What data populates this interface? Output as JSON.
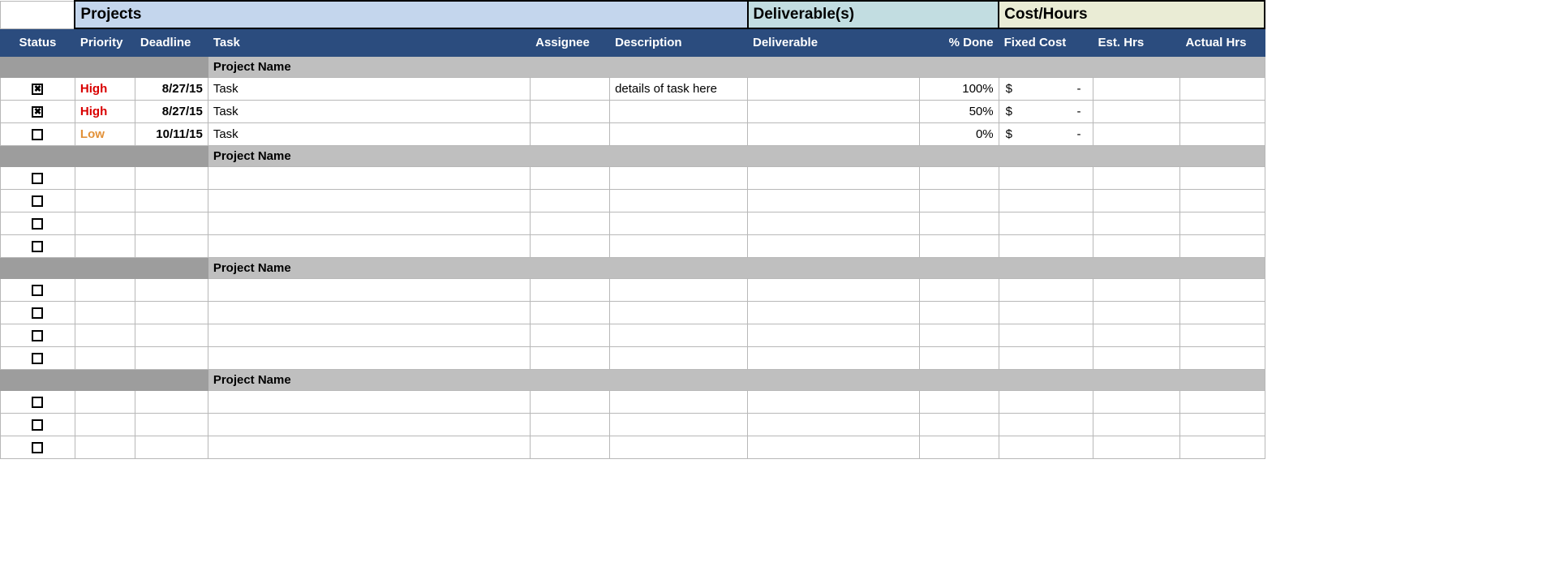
{
  "colors": {
    "headerBlue": "#2b4c7e",
    "projectsBanner": "#c4d6ed",
    "deliverableBanner": "#c2dde1",
    "costBanner": "#eaecd5",
    "groupHeader": "#bfbfbf",
    "groupHeaderDark": "#9d9d9d",
    "priorityHigh": "#d90000",
    "priorityLow": "#e29138",
    "cellBorder": "#b8b8b8"
  },
  "banners": {
    "projects": "Projects",
    "deliverables": "Deliverable(s)",
    "cost": "Cost/Hours"
  },
  "columns": {
    "status": "Status",
    "priority": "Priority",
    "deadline": "Deadline",
    "task": "Task",
    "assignee": "Assignee",
    "description": "Description",
    "deliverable": "Deliverable",
    "pctDone": "% Done",
    "fixedCost": "Fixed Cost",
    "estHrs": "Est. Hrs",
    "actualHrs": "Actual Hrs"
  },
  "columnWidths": {
    "status": 92,
    "priority": 74,
    "deadline": 90,
    "task": 398,
    "assignee": 98,
    "description": 170,
    "deliverable": 212,
    "pctDone": 98,
    "fixedCost": 116,
    "estHrs": 108,
    "actualHrs": 104
  },
  "groups": [
    {
      "title": "Project Name",
      "tasks": [
        {
          "checked": true,
          "priority": "High",
          "priorityClass": "high",
          "deadline": "8/27/15",
          "task": "Task",
          "assignee": "",
          "description": "details of task here",
          "deliverable": "",
          "pctDone": "100%",
          "fixedCost": {
            "symbol": "$",
            "value": "-"
          },
          "estHrs": "",
          "actualHrs": ""
        },
        {
          "checked": true,
          "priority": "High",
          "priorityClass": "high",
          "deadline": "8/27/15",
          "task": "Task",
          "assignee": "",
          "description": "",
          "deliverable": "",
          "pctDone": "50%",
          "fixedCost": {
            "symbol": "$",
            "value": "-"
          },
          "estHrs": "",
          "actualHrs": ""
        },
        {
          "checked": false,
          "priority": "Low",
          "priorityClass": "low",
          "deadline": "10/11/15",
          "task": "Task",
          "assignee": "",
          "description": "",
          "deliverable": "",
          "pctDone": "0%",
          "fixedCost": {
            "symbol": "$",
            "value": "-"
          },
          "estHrs": "",
          "actualHrs": ""
        }
      ]
    },
    {
      "title": "Project Name",
      "tasks": [
        {
          "checked": false,
          "priority": "",
          "priorityClass": "",
          "deadline": "",
          "task": "",
          "assignee": "",
          "description": "",
          "deliverable": "",
          "pctDone": "",
          "fixedCost": null,
          "estHrs": "",
          "actualHrs": ""
        },
        {
          "checked": false,
          "priority": "",
          "priorityClass": "",
          "deadline": "",
          "task": "",
          "assignee": "",
          "description": "",
          "deliverable": "",
          "pctDone": "",
          "fixedCost": null,
          "estHrs": "",
          "actualHrs": ""
        },
        {
          "checked": false,
          "priority": "",
          "priorityClass": "",
          "deadline": "",
          "task": "",
          "assignee": "",
          "description": "",
          "deliverable": "",
          "pctDone": "",
          "fixedCost": null,
          "estHrs": "",
          "actualHrs": ""
        },
        {
          "checked": false,
          "priority": "",
          "priorityClass": "",
          "deadline": "",
          "task": "",
          "assignee": "",
          "description": "",
          "deliverable": "",
          "pctDone": "",
          "fixedCost": null,
          "estHrs": "",
          "actualHrs": ""
        }
      ]
    },
    {
      "title": "Project Name",
      "tasks": [
        {
          "checked": false,
          "priority": "",
          "priorityClass": "",
          "deadline": "",
          "task": "",
          "assignee": "",
          "description": "",
          "deliverable": "",
          "pctDone": "",
          "fixedCost": null,
          "estHrs": "",
          "actualHrs": ""
        },
        {
          "checked": false,
          "priority": "",
          "priorityClass": "",
          "deadline": "",
          "task": "",
          "assignee": "",
          "description": "",
          "deliverable": "",
          "pctDone": "",
          "fixedCost": null,
          "estHrs": "",
          "actualHrs": ""
        },
        {
          "checked": false,
          "priority": "",
          "priorityClass": "",
          "deadline": "",
          "task": "",
          "assignee": "",
          "description": "",
          "deliverable": "",
          "pctDone": "",
          "fixedCost": null,
          "estHrs": "",
          "actualHrs": ""
        },
        {
          "checked": false,
          "priority": "",
          "priorityClass": "",
          "deadline": "",
          "task": "",
          "assignee": "",
          "description": "",
          "deliverable": "",
          "pctDone": "",
          "fixedCost": null,
          "estHrs": "",
          "actualHrs": ""
        }
      ]
    },
    {
      "title": "Project Name",
      "tasks": [
        {
          "checked": false,
          "priority": "",
          "priorityClass": "",
          "deadline": "",
          "task": "",
          "assignee": "",
          "description": "",
          "deliverable": "",
          "pctDone": "",
          "fixedCost": null,
          "estHrs": "",
          "actualHrs": ""
        },
        {
          "checked": false,
          "priority": "",
          "priorityClass": "",
          "deadline": "",
          "task": "",
          "assignee": "",
          "description": "",
          "deliverable": "",
          "pctDone": "",
          "fixedCost": null,
          "estHrs": "",
          "actualHrs": ""
        },
        {
          "checked": false,
          "priority": "",
          "priorityClass": "",
          "deadline": "",
          "task": "",
          "assignee": "",
          "description": "",
          "deliverable": "",
          "pctDone": "",
          "fixedCost": null,
          "estHrs": "",
          "actualHrs": ""
        }
      ]
    }
  ]
}
